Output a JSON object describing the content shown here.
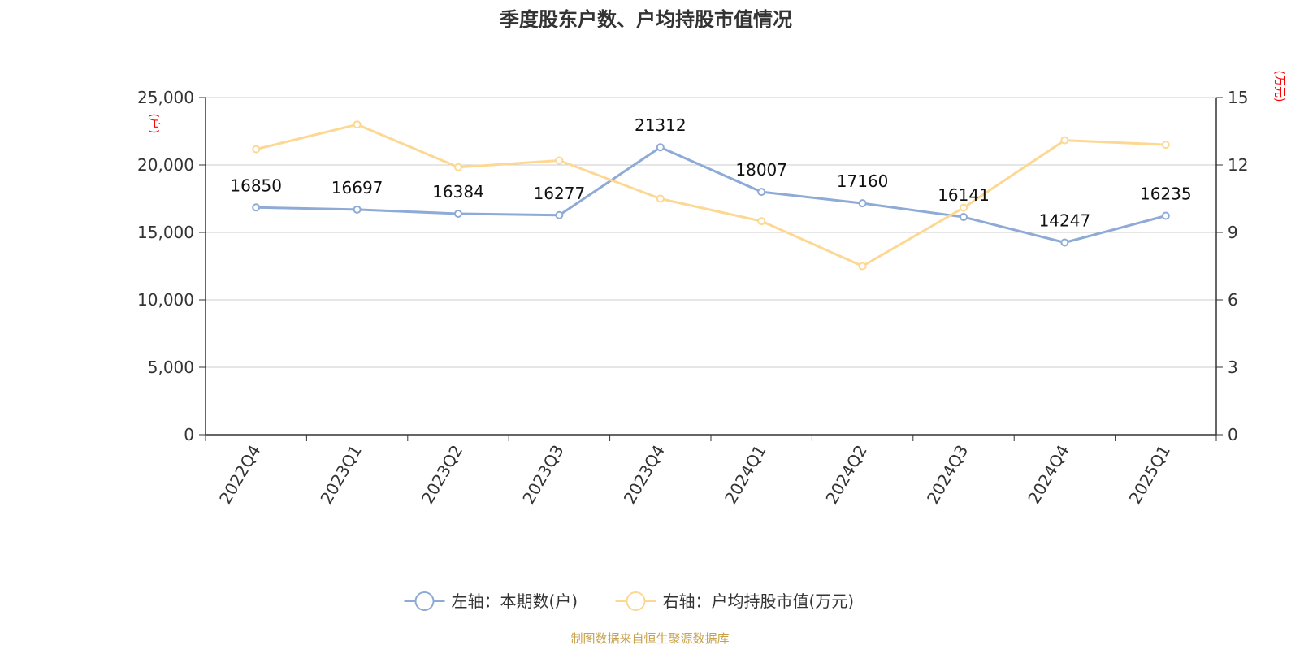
{
  "chart_data": {
    "type": "line",
    "title": "季度股东户数、户均持股市值情况",
    "categories": [
      "2022Q4",
      "2023Q1",
      "2023Q2",
      "2023Q3",
      "2023Q4",
      "2024Q1",
      "2024Q2",
      "2024Q3",
      "2024Q4",
      "2025Q1"
    ],
    "y_left": {
      "unit": "(户)",
      "ylim": [
        0,
        25000
      ],
      "ticks": [
        "0",
        "5,000",
        "10,000",
        "15,000",
        "20,000",
        "25,000"
      ],
      "tick_values": [
        0,
        5000,
        10000,
        15000,
        20000,
        25000
      ]
    },
    "y_right": {
      "unit": "(万元)",
      "ylim": [
        0,
        15
      ],
      "ticks": [
        "0",
        "3",
        "6",
        "9",
        "12",
        "15"
      ],
      "tick_values": [
        0,
        3,
        6,
        9,
        12,
        15
      ]
    },
    "series": [
      {
        "name": "左轴：本期数(户)",
        "axis": "left",
        "color": "#8eaad6",
        "show_labels": true,
        "values": [
          16850,
          16697,
          16384,
          16277,
          21312,
          18007,
          17160,
          16141,
          14247,
          16235
        ]
      },
      {
        "name": "右轴：户均持股市值(万元)",
        "axis": "right",
        "color": "#fcd893",
        "show_labels": false,
        "values": [
          12.7,
          13.8,
          11.9,
          12.2,
          10.5,
          9.5,
          7.5,
          10.1,
          13.1,
          12.9
        ]
      }
    ],
    "grid": true,
    "legend_position": "bottom-center"
  },
  "source_note": "制图数据来自恒生聚源数据库"
}
